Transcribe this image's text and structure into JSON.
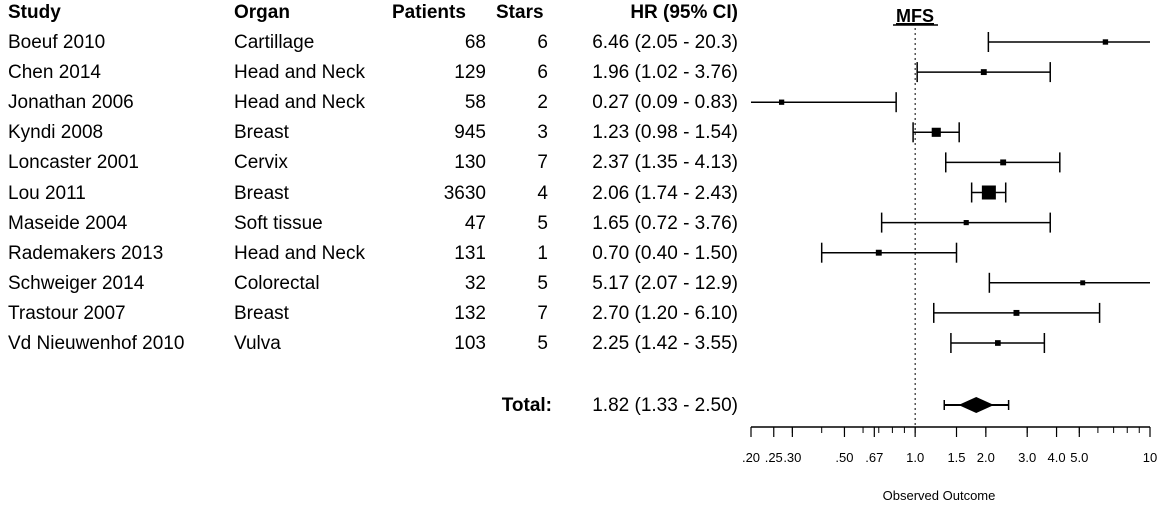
{
  "table": {
    "headers": {
      "study": "Study",
      "organ": "Organ",
      "patients": "Patients",
      "stars": "Stars",
      "hr": "HR (95% CI)"
    },
    "rows": [
      {
        "study": "Boeuf 2010",
        "organ": "Cartillage",
        "patients": "68",
        "stars": "6",
        "hr": "6.46 (2.05 - 20.3)"
      },
      {
        "study": "Chen 2014",
        "organ": "Head and Neck",
        "patients": "129",
        "stars": "6",
        "hr": "1.96 (1.02 - 3.76)"
      },
      {
        "study": "Jonathan 2006",
        "organ": "Head and Neck",
        "patients": "58",
        "stars": "2",
        "hr": "0.27 (0.09 - 0.83)"
      },
      {
        "study": "Kyndi 2008",
        "organ": "Breast",
        "patients": "945",
        "stars": "3",
        "hr": "1.23 (0.98 - 1.54)"
      },
      {
        "study": "Loncaster 2001",
        "organ": "Cervix",
        "patients": "130",
        "stars": "7",
        "hr": "2.37 (1.35 - 4.13)"
      },
      {
        "study": "Lou 2011",
        "organ": "Breast",
        "patients": "3630",
        "stars": "4",
        "hr": "2.06 (1.74 - 2.43)"
      },
      {
        "study": "Maseide 2004",
        "organ": "Soft tissue",
        "patients": "47",
        "stars": "5",
        "hr": "1.65 (0.72 - 3.76)"
      },
      {
        "study": "Rademakers 2013",
        "organ": "Head and Neck",
        "patients": "131",
        "stars": "1",
        "hr": "0.70 (0.40 - 1.50)"
      },
      {
        "study": "Schweiger 2014",
        "organ": "Colorectal",
        "patients": "32",
        "stars": "5",
        "hr": "5.17 (2.07 - 12.9)"
      },
      {
        "study": "Trastour 2007",
        "organ": "Breast",
        "patients": "132",
        "stars": "7",
        "hr": "2.70 (1.20 - 6.10)"
      },
      {
        "study": "Vd Nieuwenhof 2010",
        "organ": "Vulva",
        "patients": "103",
        "stars": "5",
        "hr": "2.25 (1.42 - 3.55)"
      }
    ],
    "total": {
      "label": "Total:",
      "hr": "1.82 (1.33 - 2.50)"
    }
  },
  "chart_data": {
    "type": "forest",
    "title": "MFS",
    "xlabel": "Observed Outcome",
    "scale": "log",
    "xlim": [
      0.2,
      10
    ],
    "reference_line": 1.0,
    "ticks": [
      {
        "value": 0.2,
        "label": ".20"
      },
      {
        "value": 0.25,
        "label": ".25"
      },
      {
        "value": 0.3,
        "label": ".30"
      },
      {
        "value": 0.5,
        "label": ".50"
      },
      {
        "value": 0.67,
        "label": ".67"
      },
      {
        "value": 1.0,
        "label": "1.0"
      },
      {
        "value": 1.5,
        "label": "1.5"
      },
      {
        "value": 2.0,
        "label": "2.0"
      },
      {
        "value": 3.0,
        "label": "3.0"
      },
      {
        "value": 4.0,
        "label": "4.0"
      },
      {
        "value": 5.0,
        "label": "5.0"
      },
      {
        "value": 10,
        "label": "10"
      }
    ],
    "studies": [
      {
        "name": "Boeuf 2010",
        "hr": 6.46,
        "lo": 2.05,
        "hi": 20.3,
        "weight": 68
      },
      {
        "name": "Chen 2014",
        "hr": 1.96,
        "lo": 1.02,
        "hi": 3.76,
        "weight": 129
      },
      {
        "name": "Jonathan 2006",
        "hr": 0.27,
        "lo": 0.09,
        "hi": 0.83,
        "weight": 58
      },
      {
        "name": "Kyndi 2008",
        "hr": 1.23,
        "lo": 0.98,
        "hi": 1.54,
        "weight": 945
      },
      {
        "name": "Loncaster 2001",
        "hr": 2.37,
        "lo": 1.35,
        "hi": 4.13,
        "weight": 130
      },
      {
        "name": "Lou 2011",
        "hr": 2.06,
        "lo": 1.74,
        "hi": 2.43,
        "weight": 3630
      },
      {
        "name": "Maseide 2004",
        "hr": 1.65,
        "lo": 0.72,
        "hi": 3.76,
        "weight": 47
      },
      {
        "name": "Rademakers 2013",
        "hr": 0.7,
        "lo": 0.4,
        "hi": 1.5,
        "weight": 131
      },
      {
        "name": "Schweiger 2014",
        "hr": 5.17,
        "lo": 2.07,
        "hi": 12.9,
        "weight": 32
      },
      {
        "name": "Trastour 2007",
        "hr": 2.7,
        "lo": 1.2,
        "hi": 6.1,
        "weight": 132
      },
      {
        "name": "Vd Nieuwenhof 2010",
        "hr": 2.25,
        "lo": 1.42,
        "hi": 3.55,
        "weight": 103
      }
    ],
    "total": {
      "hr": 1.82,
      "lo": 1.33,
      "hi": 2.5
    }
  }
}
